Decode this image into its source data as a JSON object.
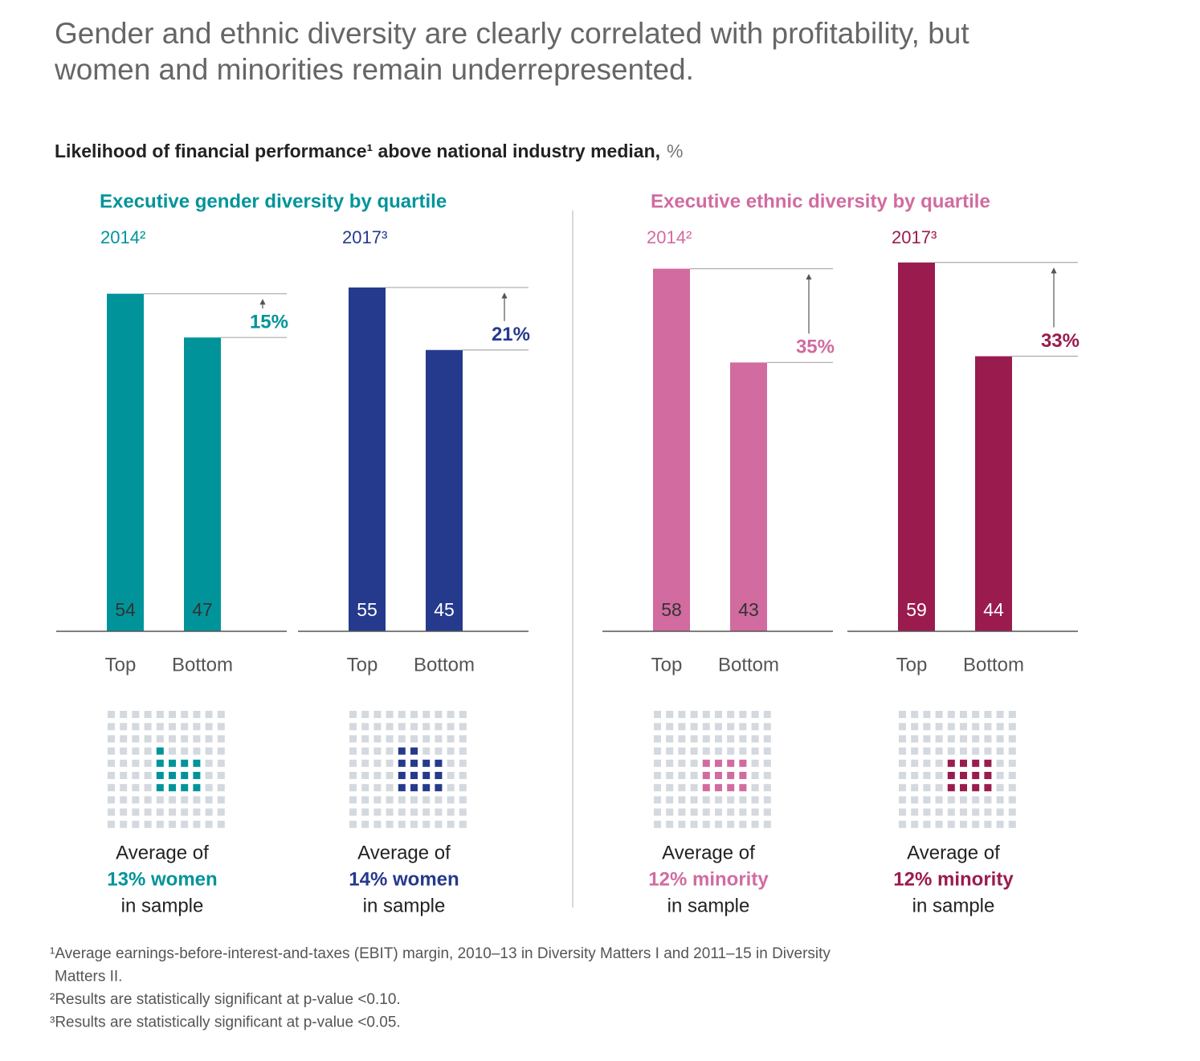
{
  "title": [
    "Gender and ethnic diversity are clearly correlated with profitability, but",
    "women and minorities remain underrepresented."
  ],
  "subtitle": "Likelihood of financial performance¹ above national industry median,",
  "unit": "%",
  "panels": [
    {
      "title": "Executive gender diversity by quartile",
      "color": "#00949a"
    },
    {
      "title": "Executive ethnic diversity by quartile",
      "color": "#d16ba0"
    }
  ],
  "chart_data": [
    {
      "type": "bar",
      "title": "2014²",
      "categories": [
        "Top",
        "Bottom"
      ],
      "values": [
        54,
        47
      ],
      "color": "#00949a",
      "value_label_color": "#333333",
      "ylim": [
        0,
        60
      ],
      "annotation": "15%",
      "sample_share": 13,
      "sample_intro": "Average of",
      "sample_label": "13% women",
      "sample_outro": "in sample"
    },
    {
      "type": "bar",
      "title": "2017³",
      "categories": [
        "Top",
        "Bottom"
      ],
      "values": [
        55,
        45
      ],
      "color": "#253a8c",
      "value_label_color": "#ffffff",
      "ylim": [
        0,
        60
      ],
      "annotation": "21%",
      "sample_share": 14,
      "sample_intro": "Average of",
      "sample_label": "14% women",
      "sample_outro": "in sample"
    },
    {
      "type": "bar",
      "title": "2014²",
      "categories": [
        "Top",
        "Bottom"
      ],
      "values": [
        58,
        43
      ],
      "color": "#d16ba0",
      "value_label_color": "#333333",
      "ylim": [
        0,
        60
      ],
      "annotation": "35%",
      "sample_share": 12,
      "sample_intro": "Average of",
      "sample_label": "12% minority",
      "sample_outro": "in sample"
    },
    {
      "type": "bar",
      "title": "2017³",
      "categories": [
        "Top",
        "Bottom"
      ],
      "values": [
        59,
        44
      ],
      "color": "#9a1b4e",
      "value_label_color": "#ffffff",
      "ylim": [
        0,
        60
      ],
      "annotation": "33%",
      "sample_share": 12,
      "sample_intro": "Average of",
      "sample_label": "12% minority",
      "sample_outro": "in sample"
    }
  ],
  "footnotes": [
    [
      "¹Average earnings-before-interest-and-taxes (EBIT) margin, 2010–13 in Diversity Matters I and 2011–15 in Diversity",
      "Matters II."
    ],
    [
      "²Results are statistically significant at p-value <0.10."
    ],
    [
      "³Results are statistically significant at p-value <0.05."
    ]
  ]
}
